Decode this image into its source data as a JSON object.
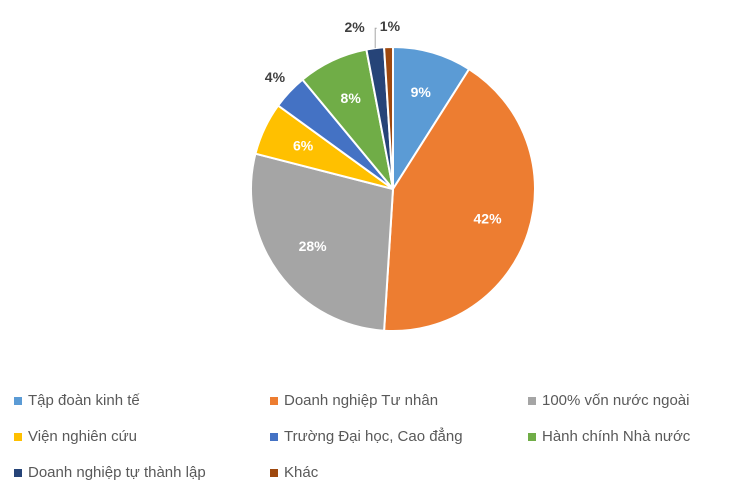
{
  "chart_data": {
    "type": "pie",
    "categories": [
      "Tập đoàn kinh tế",
      "Doanh nghiệp Tư nhân",
      "100% vốn nước ngoài",
      "Viện nghiên cứu",
      "Trường Đại học, Cao đẳng",
      "Hành chính Nhà nước",
      "Doanh nghiệp tự thành lập",
      "Khác"
    ],
    "values": [
      9,
      42,
      28,
      6,
      4,
      8,
      2,
      1
    ],
    "value_labels": [
      "9%",
      "42%",
      "28%",
      "6%",
      "4%",
      "8%",
      "2%",
      "1%"
    ],
    "colors": [
      "#5b9bd5",
      "#ed7d31",
      "#a5a5a5",
      "#ffc000",
      "#4472c4",
      "#70ad47",
      "#264478",
      "#9e480e"
    ],
    "legend": "bottom"
  }
}
